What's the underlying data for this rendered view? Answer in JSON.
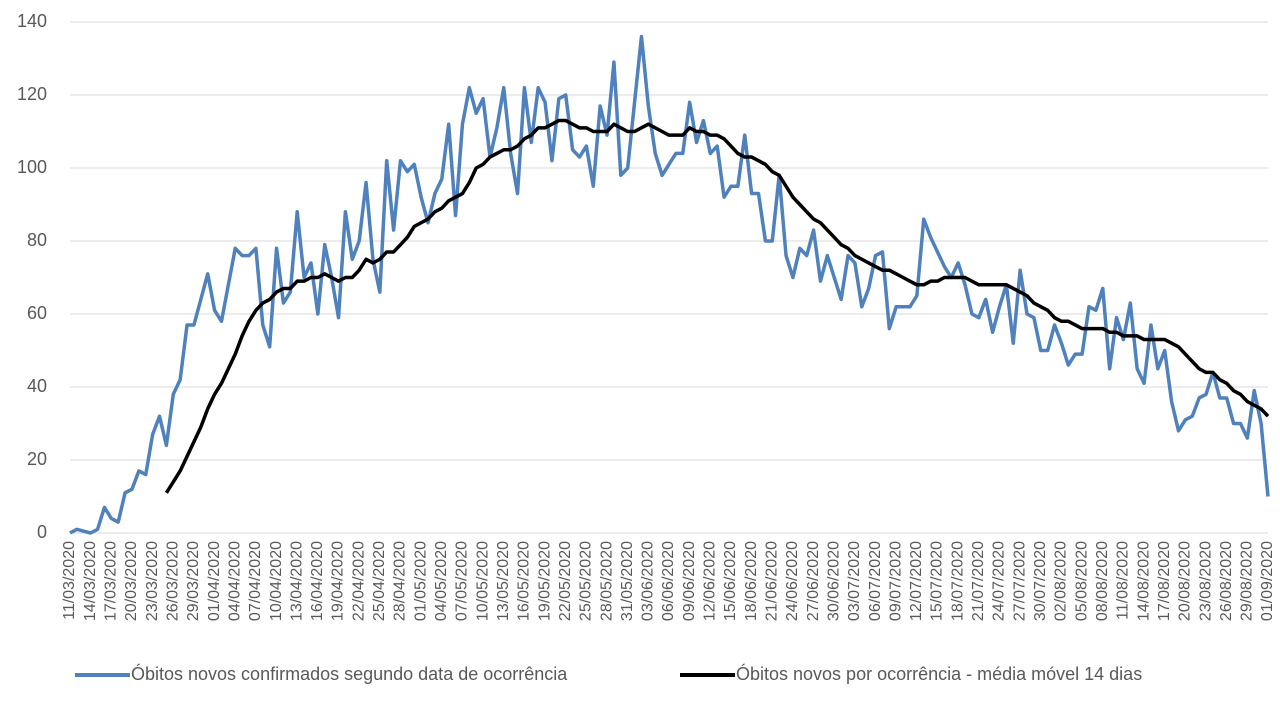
{
  "chart_data": {
    "type": "line",
    "categories": [
      "11/03/2020",
      null,
      null,
      "14/03/2020",
      null,
      null,
      "17/03/2020",
      null,
      null,
      "20/03/2020",
      null,
      null,
      "23/03/2020",
      null,
      null,
      "26/03/2020",
      null,
      null,
      "29/03/2020",
      null,
      null,
      "01/04/2020",
      null,
      null,
      "04/04/2020",
      null,
      null,
      "07/04/2020",
      null,
      null,
      "10/04/2020",
      null,
      null,
      "13/04/2020",
      null,
      null,
      "16/04/2020",
      null,
      null,
      "19/04/2020",
      null,
      null,
      "22/04/2020",
      null,
      null,
      "25/04/2020",
      null,
      null,
      "28/04/2020",
      null,
      null,
      "01/05/2020",
      null,
      null,
      "04/05/2020",
      null,
      null,
      "07/05/2020",
      null,
      null,
      "10/05/2020",
      null,
      null,
      "13/05/2020",
      null,
      null,
      "16/05/2020",
      null,
      null,
      "19/05/2020",
      null,
      null,
      "22/05/2020",
      null,
      null,
      "25/05/2020",
      null,
      null,
      "28/05/2020",
      null,
      null,
      "31/05/2020",
      null,
      null,
      "03/06/2020",
      null,
      null,
      "06/06/2020",
      null,
      null,
      "09/06/2020",
      null,
      null,
      "12/06/2020",
      null,
      null,
      "15/06/2020",
      null,
      null,
      "18/06/2020",
      null,
      null,
      "21/06/2020",
      null,
      null,
      "24/06/2020",
      null,
      null,
      "27/06/2020",
      null,
      null,
      "30/06/2020",
      null,
      null,
      "03/07/2020",
      null,
      null,
      "06/07/2020",
      null,
      null,
      "09/07/2020",
      null,
      null,
      "12/07/2020",
      null,
      null,
      "15/07/2020",
      null,
      null,
      "18/07/2020",
      null,
      null,
      "21/07/2020",
      null,
      null,
      "24/07/2020",
      null,
      null,
      "27/07/2020",
      null,
      null,
      "30/07/2020",
      null,
      null,
      "02/08/2020",
      null,
      null,
      "05/08/2020",
      null,
      null,
      "08/08/2020",
      null,
      null,
      "11/08/2020",
      null,
      null,
      "14/08/2020",
      null,
      null,
      "17/08/2020",
      null,
      null,
      "20/08/2020",
      null,
      null,
      "23/08/2020",
      null,
      null,
      "26/08/2020",
      null,
      null,
      "29/08/2020",
      null,
      null,
      "01/09/2020"
    ],
    "series": [
      {
        "name": "Óbitos novos confirmados segundo data de ocorrência",
        "color": "#4f81bd",
        "values": [
          0,
          1,
          0.5,
          0,
          1,
          7,
          4,
          3,
          11,
          12,
          17,
          16,
          27,
          32,
          24,
          38,
          42,
          57,
          57,
          64,
          71,
          61,
          58,
          68,
          78,
          76,
          76,
          78,
          57,
          51,
          78,
          63,
          66,
          88,
          70,
          74,
          60,
          79,
          70,
          59,
          88,
          75,
          80,
          96,
          75,
          66,
          102,
          83,
          102,
          99,
          101,
          92,
          85,
          93,
          97,
          112,
          87,
          112,
          122,
          115,
          119,
          103,
          111,
          122,
          104,
          93,
          122,
          107,
          122,
          118,
          102,
          119,
          120,
          105,
          103,
          106,
          95,
          117,
          109,
          129,
          98,
          100,
          118,
          136,
          117,
          104,
          98,
          101,
          104,
          104,
          118,
          107,
          113,
          104,
          106,
          92,
          95,
          95,
          109,
          93,
          93,
          80,
          80,
          98,
          76,
          70,
          78,
          76,
          83,
          69,
          76,
          70,
          64,
          76,
          74,
          62,
          67,
          76,
          77,
          56,
          62,
          62,
          62,
          65,
          86,
          81,
          77,
          73,
          70,
          74,
          68,
          60,
          59,
          64,
          55,
          62,
          68,
          52,
          72,
          60,
          59,
          50,
          50,
          57,
          52,
          46,
          49,
          49,
          62,
          61,
          67,
          45,
          59,
          53,
          63,
          45,
          41,
          57,
          45,
          50,
          36,
          28,
          31,
          32,
          37,
          38,
          44,
          37,
          37,
          30,
          30,
          26,
          39,
          30,
          10
        ]
      },
      {
        "name": "Óbitos novos por ocorrência - média móvel 14 dias",
        "color": "#000000",
        "values": [
          null,
          null,
          null,
          null,
          null,
          null,
          null,
          null,
          null,
          null,
          null,
          null,
          null,
          null,
          11,
          14,
          17,
          21,
          25,
          29,
          34,
          38,
          41,
          45,
          49,
          54,
          58,
          61,
          63,
          64,
          66,
          67,
          67,
          69,
          69,
          70,
          70,
          71,
          70,
          69,
          70,
          70,
          72,
          75,
          74,
          75,
          77,
          77,
          79,
          81,
          84,
          85,
          86,
          88,
          89,
          91,
          92,
          93,
          96,
          100,
          101,
          103,
          104,
          105,
          105,
          106,
          108,
          109,
          111,
          111,
          112,
          113,
          113,
          112,
          111,
          111,
          110,
          110,
          110,
          112,
          111,
          110,
          110,
          111,
          112,
          111,
          110,
          109,
          109,
          109,
          111,
          110,
          110,
          109,
          109,
          108,
          106,
          104,
          103,
          103,
          102,
          101,
          99,
          98,
          95,
          92,
          90,
          88,
          86,
          85,
          83,
          81,
          79,
          78,
          76,
          75,
          74,
          73,
          72,
          72,
          71,
          70,
          69,
          68,
          68,
          69,
          69,
          70,
          70,
          70,
          70,
          69,
          68,
          68,
          68,
          68,
          68,
          67,
          66,
          65,
          63,
          62,
          61,
          59,
          58,
          58,
          57,
          56,
          56,
          56,
          56,
          55,
          55,
          54,
          54,
          54,
          53,
          53,
          53,
          53,
          52,
          51,
          49,
          47,
          45,
          44,
          44,
          42,
          41,
          39,
          38,
          36,
          35,
          34,
          32
        ]
      }
    ],
    "ylim": [
      0,
      140
    ],
    "yticks": [
      0,
      20,
      40,
      60,
      80,
      100,
      120,
      140
    ],
    "grid": true,
    "legend": "bottom"
  }
}
